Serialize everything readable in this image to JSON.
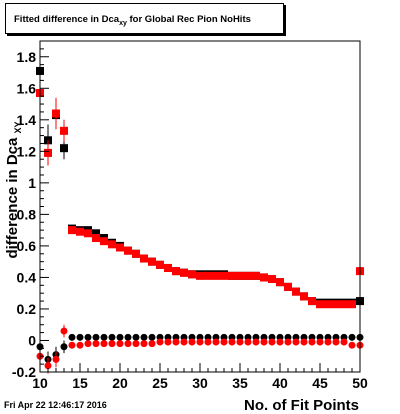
{
  "chart_data": {
    "type": "scatter",
    "title_main": "Fitted difference in Dca",
    "title_sub": "xy",
    "title_rest": "for Global Rec Pion NoHits",
    "xlabel": "No. of Fit Points",
    "ylabel_main": "difference in Dca",
    "ylabel_sub": "XY",
    "xlim": [
      10,
      50
    ],
    "ylim": [
      -0.2,
      1.9
    ],
    "x_ticks": [
      10,
      15,
      20,
      25,
      30,
      35,
      40,
      45,
      50
    ],
    "y_ticks": [
      -0.2,
      0,
      0.2,
      0.4,
      0.6,
      0.8,
      1,
      1.2,
      1.4,
      1.6,
      1.8
    ],
    "y_tick_labels": [
      "-0.2",
      "0",
      "0.2",
      "0.4",
      "0.6",
      "0.8",
      "1",
      "1.2",
      "1.4",
      "1.6",
      "1.8"
    ],
    "x": [
      10,
      11,
      12,
      13,
      14,
      15,
      16,
      17,
      18,
      19,
      20,
      21,
      22,
      23,
      24,
      25,
      26,
      27,
      28,
      29,
      30,
      31,
      32,
      33,
      34,
      35,
      36,
      37,
      38,
      39,
      40,
      41,
      42,
      43,
      44,
      45,
      46,
      47,
      48,
      49,
      50
    ],
    "series": [
      {
        "color": "#000000",
        "marker": "square",
        "values": [
          1.71,
          1.27,
          1.43,
          1.22,
          0.71,
          0.7,
          0.7,
          0.68,
          0.65,
          0.62,
          0.6,
          0.57,
          0.55,
          0.52,
          0.5,
          0.48,
          0.46,
          0.44,
          0.43,
          0.42,
          0.42,
          0.42,
          0.42,
          0.42,
          0.41,
          0.41,
          0.41,
          0.41,
          0.4,
          0.39,
          0.37,
          0.34,
          0.31,
          0.28,
          0.25,
          0.24,
          0.24,
          0.24,
          0.24,
          0.24,
          0.25
        ],
        "errors": [
          0.04,
          0.1,
          0.08,
          0.07,
          0.01,
          0.01,
          0.01,
          0.01,
          0.01,
          0.01,
          0.01,
          0.01,
          0.01,
          0.01,
          0.01,
          0.01,
          0.01,
          0.01,
          0.01,
          0.01,
          0.01,
          0.01,
          0.01,
          0.01,
          0.01,
          0.01,
          0.01,
          0.01,
          0.01,
          0.01,
          0.01,
          0.01,
          0.01,
          0.01,
          0.01,
          0.01,
          0.01,
          0.01,
          0.01,
          0.01,
          0.01
        ]
      },
      {
        "color": "#ff0000",
        "marker": "square",
        "values": [
          1.57,
          1.19,
          1.44,
          1.33,
          0.7,
          0.69,
          0.68,
          0.65,
          0.63,
          0.61,
          0.59,
          0.57,
          0.55,
          0.52,
          0.5,
          0.48,
          0.46,
          0.44,
          0.43,
          0.42,
          0.41,
          0.41,
          0.41,
          0.41,
          0.41,
          0.41,
          0.41,
          0.41,
          0.4,
          0.39,
          0.37,
          0.34,
          0.31,
          0.28,
          0.25,
          0.23,
          0.23,
          0.23,
          0.23,
          0.23,
          0.44
        ],
        "errors": [
          0.06,
          0.08,
          0.1,
          0.07,
          0.01,
          0.01,
          0.01,
          0.01,
          0.01,
          0.01,
          0.01,
          0.01,
          0.01,
          0.01,
          0.01,
          0.01,
          0.01,
          0.01,
          0.01,
          0.01,
          0.01,
          0.01,
          0.01,
          0.01,
          0.01,
          0.01,
          0.01,
          0.01,
          0.01,
          0.01,
          0.01,
          0.01,
          0.01,
          0.01,
          0.01,
          0.01,
          0.01,
          0.01,
          0.01,
          0.01,
          0.14
        ]
      },
      {
        "color": "#000000",
        "marker": "circle",
        "values": [
          -0.04,
          -0.12,
          -0.09,
          -0.04,
          0.02,
          0.02,
          0.02,
          0.02,
          0.02,
          0.02,
          0.02,
          0.02,
          0.02,
          0.02,
          0.02,
          0.02,
          0.02,
          0.02,
          0.02,
          0.02,
          0.02,
          0.02,
          0.02,
          0.02,
          0.02,
          0.02,
          0.02,
          0.02,
          0.02,
          0.02,
          0.02,
          0.02,
          0.02,
          0.02,
          0.02,
          0.02,
          0.02,
          0.02,
          0.02,
          0.02,
          0.02
        ],
        "errors": [
          0.03,
          0.05,
          0.05,
          0.04,
          0.01,
          0.01,
          0.01,
          0.01,
          0.01,
          0.01,
          0.01,
          0.01,
          0.01,
          0.01,
          0.01,
          0.01,
          0.01,
          0.01,
          0.01,
          0.01,
          0.01,
          0.01,
          0.01,
          0.01,
          0.01,
          0.01,
          0.01,
          0.01,
          0.01,
          0.01,
          0.01,
          0.01,
          0.01,
          0.01,
          0.01,
          0.01,
          0.01,
          0.01,
          0.01,
          0.01,
          0.02
        ]
      },
      {
        "color": "#ff0000",
        "marker": "circle",
        "values": [
          -0.1,
          -0.16,
          -0.12,
          0.06,
          -0.03,
          -0.03,
          -0.02,
          -0.02,
          -0.02,
          -0.02,
          -0.02,
          -0.02,
          -0.02,
          -0.02,
          -0.02,
          -0.01,
          -0.01,
          -0.01,
          -0.01,
          -0.01,
          -0.01,
          -0.01,
          -0.01,
          -0.01,
          -0.01,
          -0.01,
          -0.01,
          -0.01,
          -0.01,
          -0.01,
          -0.01,
          -0.01,
          -0.01,
          -0.01,
          -0.01,
          -0.01,
          -0.01,
          -0.01,
          -0.01,
          -0.03,
          -0.03
        ],
        "errors": [
          0.04,
          0.05,
          0.05,
          0.04,
          0.01,
          0.01,
          0.01,
          0.01,
          0.01,
          0.01,
          0.01,
          0.01,
          0.01,
          0.01,
          0.01,
          0.01,
          0.01,
          0.01,
          0.01,
          0.01,
          0.01,
          0.01,
          0.01,
          0.01,
          0.01,
          0.01,
          0.01,
          0.01,
          0.01,
          0.01,
          0.01,
          0.01,
          0.01,
          0.01,
          0.01,
          0.01,
          0.01,
          0.01,
          0.01,
          0.02,
          0.03
        ]
      }
    ],
    "grid": false,
    "legend": "none"
  },
  "footer": {
    "date": "Fri Apr 22 12:46:17 2016"
  }
}
